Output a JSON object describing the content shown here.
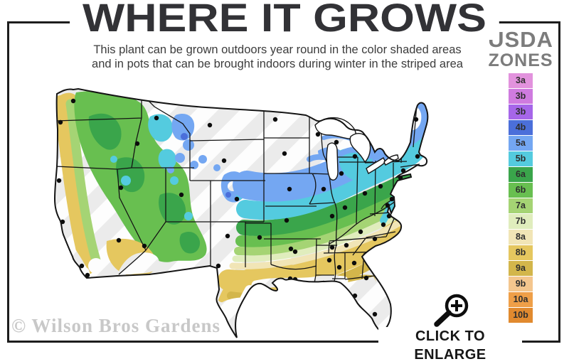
{
  "header": {
    "title": "WHERE IT GROWS",
    "subtitle_line1": "This plant can be grown outdoors year round in the color shaded areas",
    "subtitle_line2": "and in pots that can be brought indoors during winter in the striped area"
  },
  "legend": {
    "title_line1": "USDA",
    "title_line2": "ZONES",
    "zones": [
      {
        "label": "3a",
        "color": "#e292dd"
      },
      {
        "label": "3b",
        "color": "#cf7bdf"
      },
      {
        "label": "3b",
        "color": "#a666e9"
      },
      {
        "label": "4b",
        "color": "#4b6fda"
      },
      {
        "label": "5a",
        "color": "#74a7f2"
      },
      {
        "label": "5b",
        "color": "#54cbdf"
      },
      {
        "label": "6a",
        "color": "#3aa54b"
      },
      {
        "label": "6b",
        "color": "#68bf50"
      },
      {
        "label": "7a",
        "color": "#a5d474"
      },
      {
        "label": "7b",
        "color": "#e0edbd"
      },
      {
        "label": "8a",
        "color": "#f1e5b6"
      },
      {
        "label": "8b",
        "color": "#e5c75f"
      },
      {
        "label": "9a",
        "color": "#d3b64b"
      },
      {
        "label": "9b",
        "color": "#f4c68e"
      },
      {
        "label": "10a",
        "color": "#ef9f48"
      },
      {
        "label": "10b",
        "color": "#e18a2f"
      }
    ]
  },
  "watermark": "© Wilson Bros Gardens",
  "cta": {
    "label": "CLICK TO ENLARGE",
    "icon": "magnifier-plus-icon"
  },
  "colors": {
    "frame": "#1d1d1d",
    "title_text": "#323236",
    "legend_title": "#7c7c7c",
    "watermark": "#c8c8c8",
    "map_stripe_base": "#ebebeb",
    "map_stripe_band": "#fdfdfd"
  }
}
